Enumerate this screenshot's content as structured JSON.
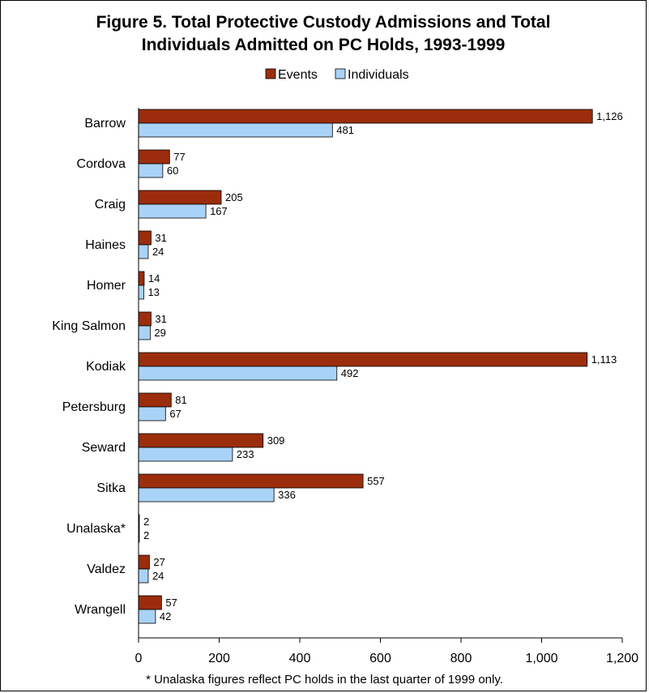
{
  "title_lines": [
    "Figure 5. Total Protective Custody Admissions and Total",
    "Individuals Admitted on PC Holds, 1993-1999"
  ],
  "footnote": "* Unalaska figures reflect PC holds in the last quarter of 1999 only.",
  "colors": {
    "events": "#9b2d0c",
    "individuals": "#a9d2f7",
    "axis": "#000000"
  },
  "chart_data": {
    "type": "bar",
    "orientation": "horizontal",
    "categories": [
      "Barrow",
      "Cordova",
      "Craig",
      "Haines",
      "Homer",
      "King Salmon",
      "Kodiak",
      "Petersburg",
      "Seward",
      "Sitka",
      "Unalaska*",
      "Valdez",
      "Wrangell"
    ],
    "series": [
      {
        "name": "Events",
        "values": [
          1126,
          77,
          205,
          31,
          14,
          31,
          1113,
          81,
          309,
          557,
          2,
          27,
          57
        ]
      },
      {
        "name": "Individuals",
        "values": [
          481,
          60,
          167,
          24,
          13,
          29,
          492,
          67,
          233,
          336,
          2,
          24,
          42
        ]
      }
    ],
    "value_labels": {
      "Events": [
        "1,126",
        "77",
        "205",
        "31",
        "14",
        "31",
        "1,113",
        "81",
        "309",
        "557",
        "2",
        "27",
        "57"
      ],
      "Individuals": [
        "481",
        "60",
        "167",
        "24",
        "13",
        "29",
        "492",
        "67",
        "233",
        "336",
        "2",
        "24",
        "42"
      ]
    },
    "xlim": [
      0,
      1200
    ],
    "xticks": [
      0,
      200,
      400,
      600,
      800,
      1000,
      1200
    ],
    "xtick_labels": [
      "0",
      "200",
      "400",
      "600",
      "800",
      "1,000",
      "1,200"
    ],
    "legend_position": "top",
    "grid": false
  }
}
